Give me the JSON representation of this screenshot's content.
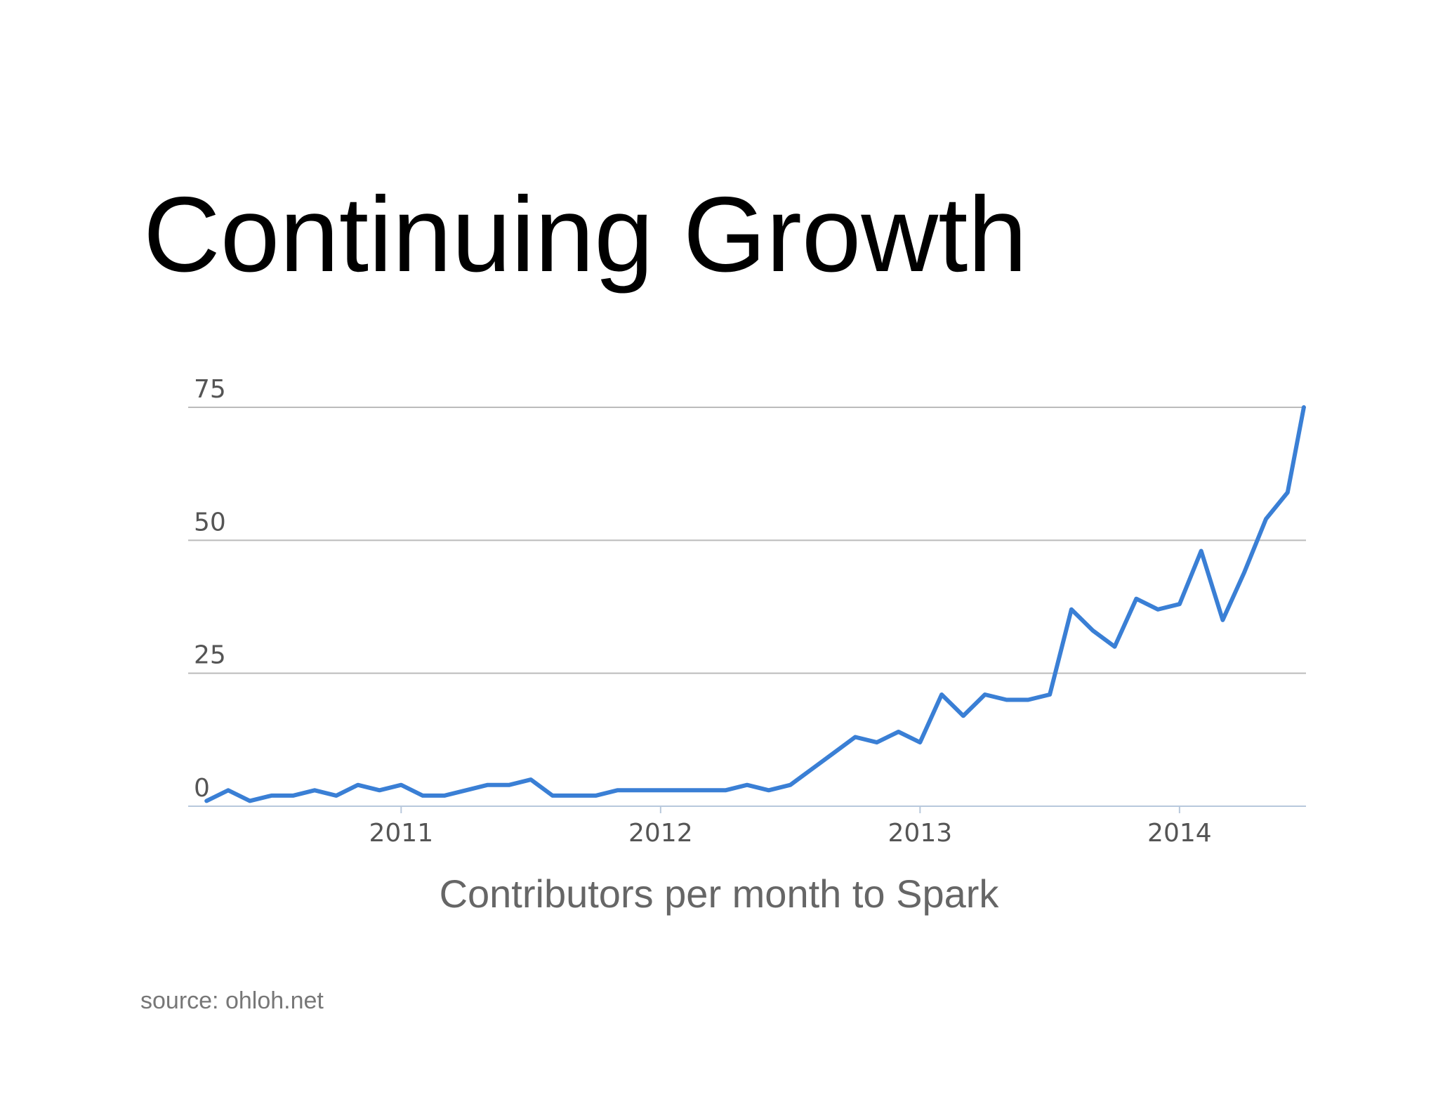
{
  "slide": {
    "title": "Continuing Growth",
    "source": "source: ohloh.net"
  },
  "chart_data": {
    "type": "line",
    "title": "Contributors per month to Spark",
    "xlabel": "",
    "ylabel": "",
    "x_range": [
      "2010-04",
      "2014-06"
    ],
    "ylim": [
      0,
      75
    ],
    "y_ticks": [
      "0",
      "25",
      "50",
      "75"
    ],
    "x_ticks": [
      {
        "label": "2011",
        "x": "2011-01"
      },
      {
        "label": "2012",
        "x": "2012-01"
      },
      {
        "label": "2013",
        "x": "2013-01"
      },
      {
        "label": "2014",
        "x": "2014-01"
      }
    ],
    "grid": "horizontal",
    "line_color": "#3a7fd5",
    "grid_color": "#bbbbbb",
    "series": [
      {
        "x": [
          "2010-04",
          "2010-05",
          "2010-06",
          "2010-07",
          "2010-08",
          "2010-09",
          "2010-10",
          "2010-11",
          "2010-12",
          "2011-01",
          "2011-02",
          "2011-03",
          "2011-04",
          "2011-05",
          "2011-06",
          "2011-07",
          "2011-08",
          "2011-09",
          "2011-10",
          "2011-11",
          "2011-12",
          "2012-01",
          "2012-02",
          "2012-03",
          "2012-04",
          "2012-05",
          "2012-06",
          "2012-07",
          "2012-08",
          "2012-09",
          "2012-10",
          "2012-11",
          "2012-12",
          "2013-01",
          "2013-02",
          "2013-03",
          "2013-04",
          "2013-05",
          "2013-06",
          "2013-07",
          "2013-08",
          "2013-09",
          "2013-10",
          "2013-11",
          "2013-12",
          "2014-01",
          "2014-02",
          "2014-03",
          "2014-04",
          "2014-05",
          "2014-06"
        ],
        "values": [
          1,
          3,
          1,
          2,
          2,
          3,
          2,
          4,
          3,
          4,
          2,
          2,
          3,
          4,
          4,
          5,
          2,
          2,
          2,
          3,
          3,
          3,
          3,
          3,
          3,
          4,
          3,
          4,
          7,
          10,
          13,
          12,
          14,
          12,
          21,
          17,
          21,
          20,
          20,
          21,
          37,
          33,
          30,
          39,
          37,
          38,
          48,
          35,
          44,
          54,
          59
        ]
      }
    ],
    "series_tail": 75
  }
}
